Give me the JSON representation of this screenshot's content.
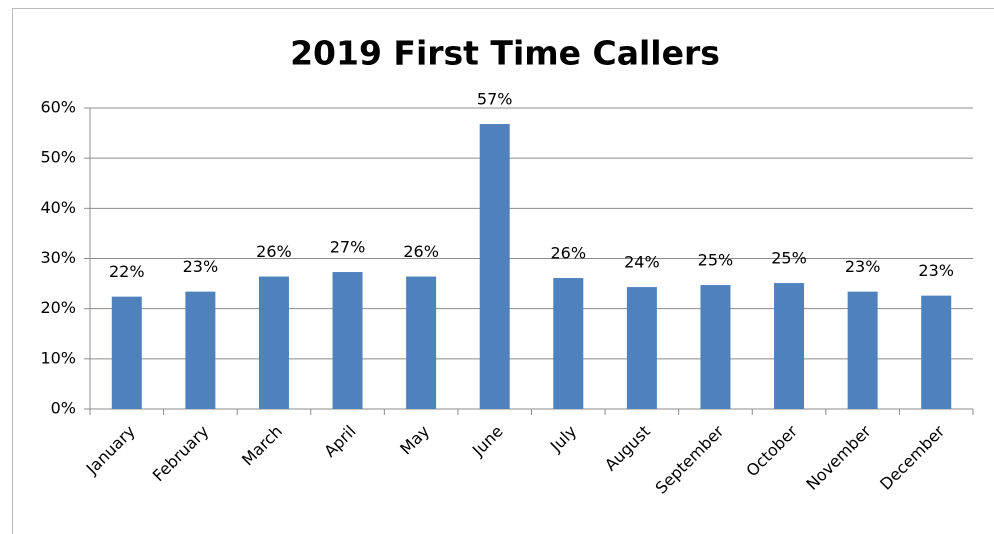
{
  "chart_data": {
    "type": "bar",
    "title": "2019 First Time Callers",
    "categories": [
      "January",
      "February",
      "March",
      "April",
      "May",
      "June",
      "July",
      "August",
      "September",
      "October",
      "November",
      "December"
    ],
    "values": [
      22.4,
      23.4,
      26.4,
      27.3,
      26.4,
      56.8,
      26.1,
      24.3,
      24.7,
      25.1,
      23.4,
      22.6
    ],
    "value_labels": [
      "22%",
      "23%",
      "26%",
      "27%",
      "26%",
      "57%",
      "26%",
      "24%",
      "25%",
      "25%",
      "23%",
      "23%"
    ],
    "color": "#4f81bd",
    "ylim": [
      0,
      60
    ],
    "yticks": [
      {
        "value": 0,
        "label": "0%"
      },
      {
        "value": 10,
        "label": "10%"
      },
      {
        "value": 20,
        "label": "20%"
      },
      {
        "value": 30,
        "label": "30%"
      },
      {
        "value": 40,
        "label": "40%"
      },
      {
        "value": 50,
        "label": "50%"
      },
      {
        "value": 60,
        "label": "60%"
      }
    ],
    "grid": true
  }
}
